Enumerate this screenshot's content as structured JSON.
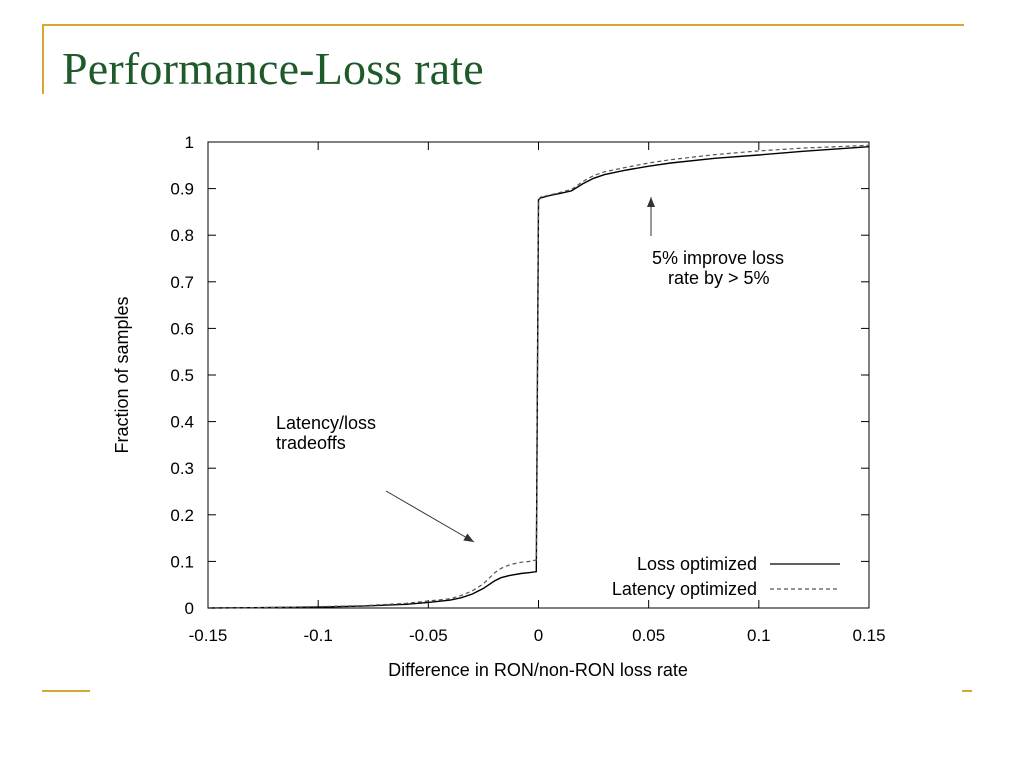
{
  "slide": {
    "title": "Performance-Loss rate"
  },
  "theme": {
    "accent": "#d9a634",
    "title_color": "#1f5a2a"
  },
  "chart_data": {
    "type": "line",
    "xlabel": "Difference in RON/non-RON loss rate",
    "ylabel": "Fraction of samples",
    "xlim": [
      -0.15,
      0.15
    ],
    "ylim": [
      0,
      1
    ],
    "xticks": [
      -0.15,
      -0.1,
      -0.05,
      0,
      0.05,
      0.1,
      0.15
    ],
    "xtick_labels": [
      "-0.15",
      "-0.1",
      "-0.05",
      "0",
      "0.05",
      "0.1",
      "0.15"
    ],
    "yticks": [
      0,
      0.1,
      0.2,
      0.3,
      0.4,
      0.5,
      0.6,
      0.7,
      0.8,
      0.9,
      1
    ],
    "ytick_labels": [
      "0",
      "0.1",
      "0.2",
      "0.3",
      "0.4",
      "0.5",
      "0.6",
      "0.7",
      "0.8",
      "0.9",
      "1"
    ],
    "legend_position": "bottom-right",
    "grid": false,
    "series": [
      {
        "name": "Loss optimized",
        "style": "solid",
        "x": [
          -0.15,
          -0.12,
          -0.1,
          -0.08,
          -0.06,
          -0.05,
          -0.04,
          -0.035,
          -0.03,
          -0.025,
          -0.02,
          -0.017,
          -0.013,
          -0.008,
          -0.004,
          -0.001,
          0.0,
          0.001,
          0.005,
          0.01,
          0.015,
          0.02,
          0.025,
          0.03,
          0.04,
          0.05,
          0.06,
          0.08,
          0.1,
          0.12,
          0.15
        ],
        "y": [
          0.0,
          0.001,
          0.002,
          0.004,
          0.008,
          0.012,
          0.017,
          0.022,
          0.03,
          0.042,
          0.058,
          0.065,
          0.07,
          0.074,
          0.076,
          0.078,
          0.876,
          0.88,
          0.885,
          0.89,
          0.895,
          0.91,
          0.922,
          0.93,
          0.94,
          0.948,
          0.955,
          0.965,
          0.972,
          0.98,
          0.99
        ]
      },
      {
        "name": "Latency optimized",
        "style": "dashed",
        "x": [
          -0.15,
          -0.12,
          -0.1,
          -0.08,
          -0.06,
          -0.05,
          -0.04,
          -0.035,
          -0.03,
          -0.025,
          -0.02,
          -0.017,
          -0.013,
          -0.008,
          -0.004,
          -0.001,
          0.0,
          0.001,
          0.005,
          0.01,
          0.015,
          0.02,
          0.025,
          0.03,
          0.04,
          0.05,
          0.06,
          0.08,
          0.1,
          0.12,
          0.15
        ],
        "y": [
          0.0,
          0.001,
          0.003,
          0.005,
          0.01,
          0.015,
          0.02,
          0.027,
          0.037,
          0.052,
          0.075,
          0.085,
          0.093,
          0.098,
          0.1,
          0.103,
          0.876,
          0.882,
          0.886,
          0.892,
          0.898,
          0.915,
          0.928,
          0.936,
          0.946,
          0.955,
          0.962,
          0.973,
          0.981,
          0.987,
          0.993
        ]
      }
    ],
    "annotations": [
      {
        "lines": [
          "5% improve loss",
          "rate by > 5%"
        ],
        "arrow_to": [
          0.05,
          0.91
        ]
      },
      {
        "lines": [
          "Latency/loss",
          "tradeoffs"
        ],
        "arrow_to": [
          -0.03,
          0.14
        ]
      }
    ]
  }
}
